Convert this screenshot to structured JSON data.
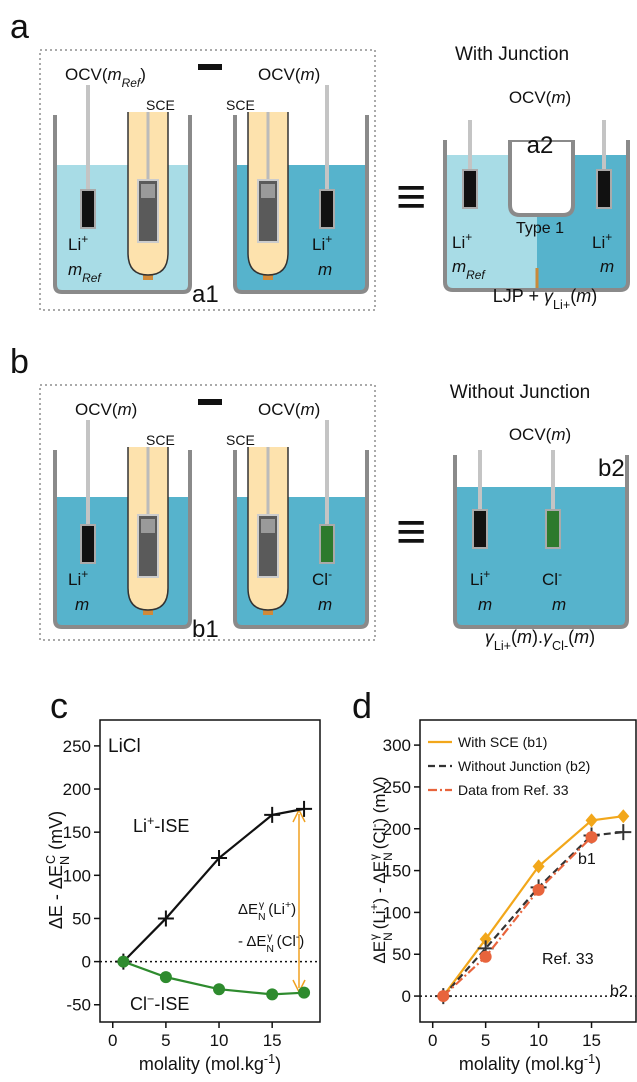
{
  "panels": {
    "a": {
      "label": "a",
      "ocv_ref": [
        "OCV(",
        "m",
        "Ref",
        ")"
      ],
      "ocv": [
        "OCV(",
        "m",
        ")"
      ],
      "sce": "SCE",
      "li": "Li",
      "plus": "+",
      "m": "m",
      "ref": "Ref",
      "cell1": "a1",
      "equiv": "≡",
      "title": "With Junction",
      "cell2": "a2",
      "junction": "Type 1",
      "result": [
        "LJP + ",
        "γ",
        "Li",
        "+",
        "(",
        "m",
        ")"
      ]
    },
    "b": {
      "label": "b",
      "ocv": [
        "OCV(",
        "m",
        ")"
      ],
      "sce": "SCE",
      "li": "Li",
      "plus": "+",
      "cl": "Cl",
      "minus": "-",
      "m": "m",
      "cell1": "b1",
      "equiv": "≡",
      "title": "Without Junction",
      "cell2": "b2",
      "result": [
        "γ",
        "Li",
        "+",
        "(",
        "m",
        ").",
        "γ",
        "Cl",
        "-",
        "(",
        "m",
        ")"
      ]
    }
  },
  "chart_data": [
    {
      "type": "line",
      "panel_label": "c",
      "ylabel": [
        "ΔE - ΔE",
        "N",
        "C",
        " (mV)"
      ],
      "xlabel": [
        "molality (mol.kg",
        "-1",
        ")"
      ],
      "xlim": [
        -1.2,
        19.5
      ],
      "ylim": [
        -70,
        280
      ],
      "xticks": [
        0,
        5,
        10,
        15
      ],
      "yticks": [
        -50,
        0,
        50,
        100,
        150,
        200,
        250
      ],
      "zero_line": true,
      "series": [
        {
          "color": "#111111",
          "marker": "plus",
          "dash": "solid",
          "x": [
            1,
            5,
            10,
            15,
            18
          ],
          "values": [
            0,
            50,
            120,
            170,
            177
          ]
        },
        {
          "color": "#2e8b2e",
          "marker": "circle",
          "dash": "solid",
          "x": [
            1,
            5,
            10,
            15,
            18
          ],
          "values": [
            0,
            -18,
            -32,
            -38,
            -36
          ]
        }
      ],
      "annotations": [
        [
          "LiCl"
        ],
        [
          "Li",
          "+",
          "-ISE"
        ],
        [
          "Cl",
          "−",
          "-ISE"
        ],
        [
          "ΔE",
          "N",
          "γ",
          " (Li",
          "+",
          ")"
        ],
        [
          "- ΔE",
          "N",
          "γ",
          " (Cl",
          "-",
          ")"
        ]
      ]
    },
    {
      "type": "line",
      "panel_label": "d",
      "ylabel": [
        "ΔE",
        "N",
        "γ",
        " (Li",
        "+",
        ") - ΔE",
        "N",
        "γ",
        " (Cl",
        "-",
        ") (mV)"
      ],
      "xlabel": [
        "molality (mol.kg",
        "-1",
        ")"
      ],
      "xlim": [
        -1.2,
        19.2
      ],
      "ylim": [
        -31,
        330
      ],
      "xticks": [
        0,
        5,
        10,
        15
      ],
      "yticks": [
        0,
        50,
        100,
        150,
        200,
        250,
        300
      ],
      "zero_line": true,
      "legend": "upper left",
      "series": [
        {
          "name": "With SCE (b1)",
          "color": "#f2a71b",
          "marker": "diamond",
          "dash": "solid",
          "x": [
            1,
            5,
            10,
            15,
            18
          ],
          "values": [
            0,
            68,
            155,
            210,
            215
          ]
        },
        {
          "name": "Without Junction (b2)",
          "color": "#333333",
          "marker": "plus",
          "dash": "dash",
          "x": [
            1,
            5,
            10,
            15,
            18
          ],
          "values": [
            0,
            57,
            130,
            192,
            196
          ]
        },
        {
          "name": "Data from Ref. 33",
          "color": "#e8643c",
          "marker": "circle",
          "dash": "dashdot",
          "x": [
            1,
            5,
            10,
            15
          ],
          "values": [
            0,
            47,
            127,
            190
          ]
        }
      ],
      "annotations": [
        [
          "b1"
        ],
        [
          "b2"
        ],
        [
          "Ref. 33"
        ]
      ]
    }
  ]
}
